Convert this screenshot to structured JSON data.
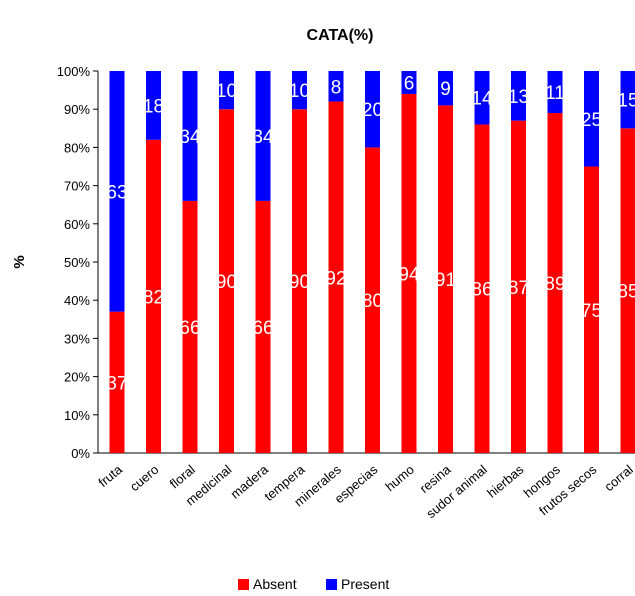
{
  "chart_data": {
    "type": "bar",
    "stacked": true,
    "title": "CATA(%)",
    "ylabel": "%",
    "xlabel": "",
    "ylim": [
      0,
      100
    ],
    "yticks": [
      "0%",
      "10%",
      "20%",
      "30%",
      "40%",
      "50%",
      "60%",
      "70%",
      "80%",
      "90%",
      "100%"
    ],
    "categories": [
      "fruta",
      "cuero",
      "floral",
      "medicinal",
      "madera",
      "tempera",
      "minerales",
      "especias",
      "humo",
      "resina",
      "sudor animal",
      "hierbas",
      "hongos",
      "frutos secos",
      "corral"
    ],
    "series": [
      {
        "name": "Absent",
        "color": "#ff0000",
        "values": [
          37,
          82,
          66,
          90,
          66,
          90,
          92,
          80,
          94,
          91,
          86,
          87,
          89,
          75,
          85
        ],
        "labels": [
          "37",
          "82",
          "66",
          "90",
          "66",
          "90",
          "92",
          "80",
          "94",
          "91",
          "86",
          "87",
          "89",
          "75",
          "85"
        ]
      },
      {
        "name": "Present",
        "color": "#0000ff",
        "values": [
          63,
          18,
          34,
          10,
          34,
          10,
          8,
          20,
          6,
          9,
          14,
          13,
          11,
          25,
          15
        ],
        "labels": [
          "63",
          "18",
          "34",
          "10",
          "34",
          "10",
          "8",
          "20",
          "6",
          "9",
          "14",
          "13",
          "11",
          "25",
          "15"
        ]
      }
    ],
    "grid": false,
    "legend": "bottom"
  }
}
